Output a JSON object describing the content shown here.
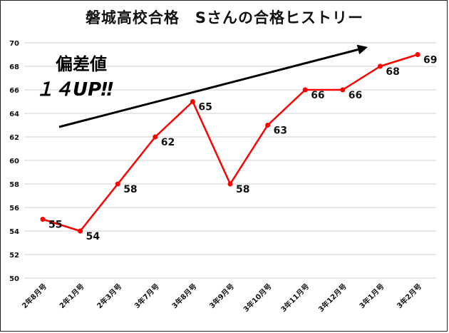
{
  "title": "磐城高校合格　Sさんの合格ヒストリー",
  "annotation": {
    "line1": "偏差値",
    "line2": "１４UP‼"
  },
  "colors": {
    "series": "#ff0000",
    "grid": "#d0d0d0",
    "arrow": "#000000"
  },
  "chart_data": {
    "type": "line",
    "title": "磐城高校合格　Sさんの合格ヒストリー",
    "categories": [
      "2年8月号",
      "2年1月号",
      "2年3月号",
      "3年7月号",
      "3年8月号",
      "3年9月号",
      "3年10月号",
      "3年11月号",
      "3年12月号",
      "3年1月号",
      "3年2月号"
    ],
    "series": [
      {
        "values": [
          55,
          54,
          58,
          62,
          65,
          58,
          63,
          66,
          66,
          68,
          69
        ]
      }
    ],
    "ylim": [
      50,
      70
    ],
    "yticks": [
      50,
      52,
      54,
      56,
      58,
      60,
      62,
      64,
      66,
      68,
      70
    ],
    "grid": "horizontal",
    "legend": "none",
    "annotations": [
      "偏差値",
      "１４UP‼"
    ]
  }
}
